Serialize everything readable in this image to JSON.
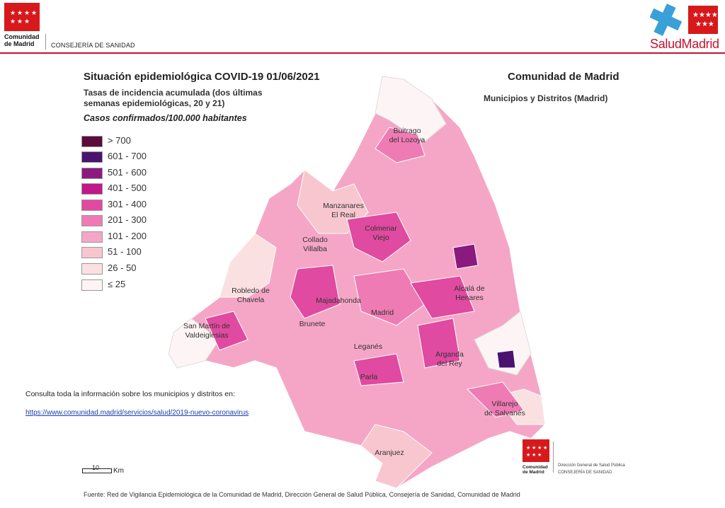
{
  "header": {
    "org_line1": "Comunidad",
    "org_line2": "de Madrid",
    "department": "CONSEJERÍA DE SANIDAD",
    "salud_logo_a": "Salud",
    "salud_logo_b": "Madrid"
  },
  "title": "Situación epidemiológica COVID-19  01/06/2021",
  "subtitle_line1": "Tasas de incidencia acumulada (dos últimas",
  "subtitle_line2": "semanas epidemiológicas, 20 y 21)",
  "subtitle_units": "Casos confirmados/100.000 habitantes",
  "region_title": "Comunidad de Madrid",
  "region_subtitle": "Municipios y Distritos (Madrid)",
  "legend": [
    {
      "label": "> 700",
      "color": "#5c0b3a"
    },
    {
      "label": "601 - 700",
      "color": "#4b1370"
    },
    {
      "label": "501 - 600",
      "color": "#8b1a7e"
    },
    {
      "label": "401 - 500",
      "color": "#c0188a"
    },
    {
      "label": "301 - 400",
      "color": "#e04aa0"
    },
    {
      "label": "201 - 300",
      "color": "#ef7bb4"
    },
    {
      "label": "101 - 200",
      "color": "#f5a6c6"
    },
    {
      "label": "51 - 100",
      "color": "#f8c6cf"
    },
    {
      "label": "26 - 50",
      "color": "#fbe0e2"
    },
    {
      "label": "≤ 25",
      "color": "#fdf5f5"
    }
  ],
  "places": [
    {
      "name": "Buitrago"
    },
    {
      "name": "del Lozoya"
    },
    {
      "name": "Manzanares"
    },
    {
      "name": "El Real"
    },
    {
      "name": "Colmenar"
    },
    {
      "name": "Viejo"
    },
    {
      "name": "Collado"
    },
    {
      "name": "Villalba"
    },
    {
      "name": "Robledo de"
    },
    {
      "name": "Chavela"
    },
    {
      "name": "Majadahonda"
    },
    {
      "name": "Madrid"
    },
    {
      "name": "Alcalá de"
    },
    {
      "name": "Henares"
    },
    {
      "name": "San Martín de"
    },
    {
      "name": "Valdeiglesias"
    },
    {
      "name": "Brunete"
    },
    {
      "name": "Leganés"
    },
    {
      "name": "Arganda"
    },
    {
      "name": "del Rey"
    },
    {
      "name": "Parla"
    },
    {
      "name": "Villarejo"
    },
    {
      "name": "de Salvanés"
    },
    {
      "name": "Aranjuez"
    }
  ],
  "info_text": "Consulta toda la información sobre los municipios y distritos en:",
  "info_link": "https://www.comunidad.madrid/servicios/salud/2019-nuevo-coronavirus",
  "scale": {
    "value": "10",
    "unit": "Km"
  },
  "source": "Fuente: Red de Vigilancia Epidemiológica de la Comunidad de Madrid, Dirección General de Salud Pública, Consejería de Sanidad, Comunidad de Madrid",
  "footer_logo": {
    "org_line1": "Comunidad",
    "org_line2": "de Madrid",
    "dg": "Dirección General de Salud Pública",
    "cs": "CONSEJERÍA DE SANIDAD"
  }
}
